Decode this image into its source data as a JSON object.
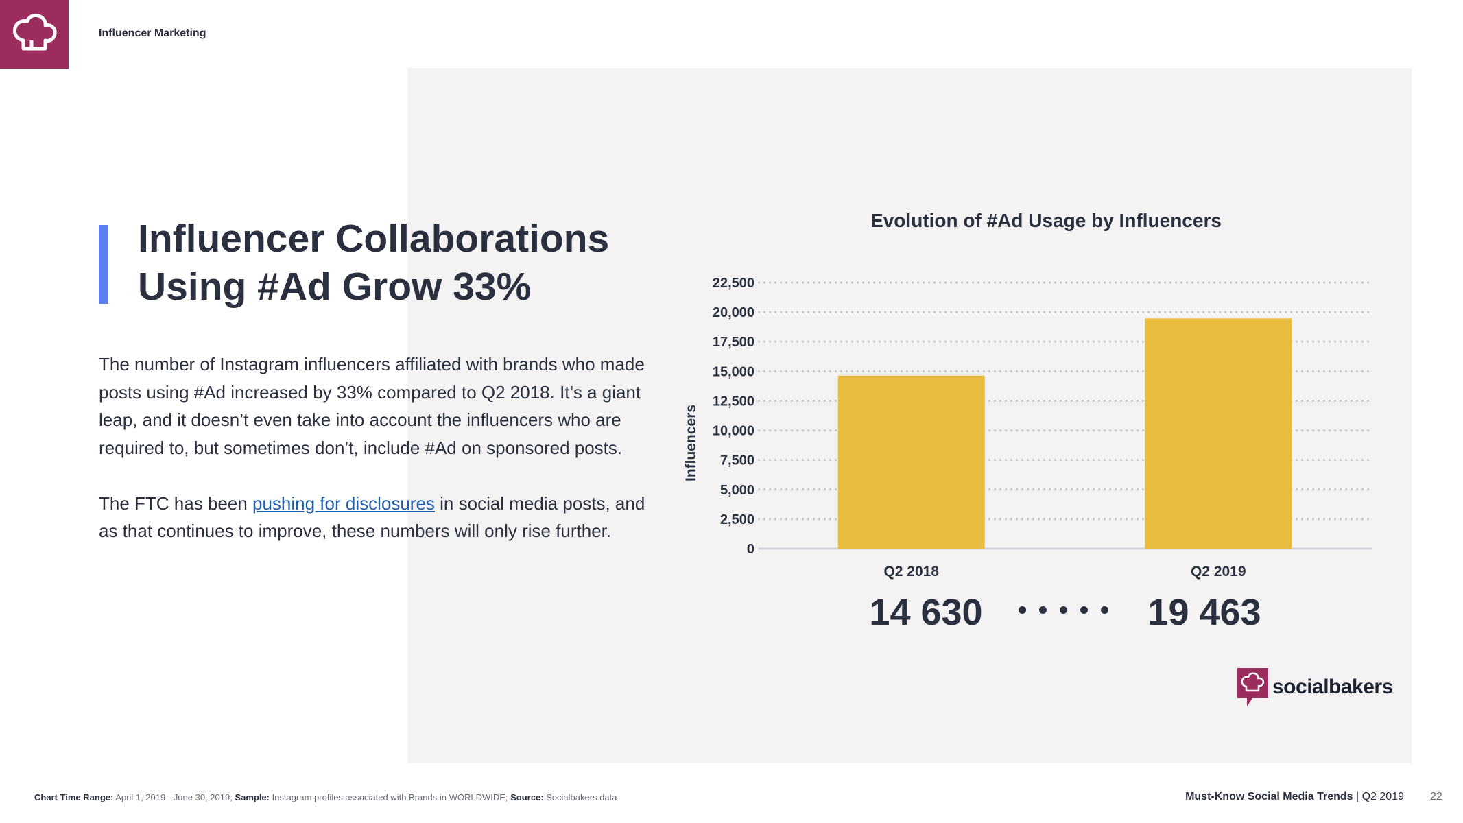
{
  "header": {
    "section_label": "Influencer Marketing"
  },
  "main": {
    "title_line1": "Influencer Collaborations",
    "title_line2": "Using #Ad Grow 33%",
    "paragraph1": "The number of Instagram influencers affiliated with brands who made posts using #Ad increased by 33% compared to Q2 2018. It’s a giant leap, and it doesn’t even take into account the influencers who are required to, but sometimes don’t, include #Ad on sponsored posts.",
    "paragraph2_before": "The FTC has been ",
    "paragraph2_link": "pushing for disclosures",
    "paragraph2_after": " in social media posts, and as that continues to improve, these numbers will only rise further."
  },
  "chart_data": {
    "type": "bar",
    "title": "Evolution of #Ad Usage by Influencers",
    "categories": [
      "Q2 2018",
      "Q2 2019"
    ],
    "values": [
      14630,
      19463
    ],
    "xlabel": "",
    "ylabel": "Influencers",
    "ylim": [
      0,
      22500
    ],
    "yticks": [
      0,
      2500,
      5000,
      7500,
      10000,
      12500,
      15000,
      17500,
      20000,
      22500
    ],
    "ytick_labels": [
      "0",
      "2,500",
      "5,000",
      "7,500",
      "10,000",
      "12,500",
      "15,000",
      "17,500",
      "20,000",
      "22,500"
    ],
    "grid": true,
    "bar_color": "#e8bc3e",
    "value_labels": [
      "14 630",
      "19 463"
    ]
  },
  "brand": {
    "name": "socialbakers",
    "color": "#9b2c5e"
  },
  "footer": {
    "range_label": "Chart Time Range:",
    "range_value": " April 1, 2019 - June 30, 2019; ",
    "sample_label": "Sample:",
    "sample_value": " Instagram profiles associated with Brands in WORLDWIDE; ",
    "source_label": "Source:",
    "source_value": " Socialbakers data",
    "report_title": "Must-Know Social Media Trends",
    "report_period": " | Q2 2019",
    "page_number": "22"
  }
}
